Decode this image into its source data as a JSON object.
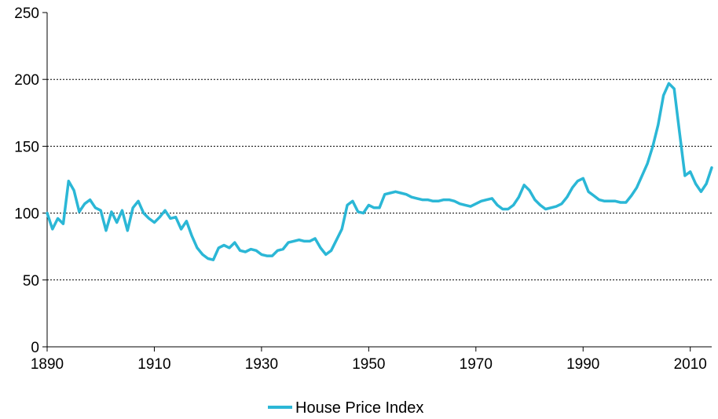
{
  "chart_data": {
    "type": "line",
    "title": "",
    "xlabel": "",
    "ylabel": "",
    "xlim": [
      1890,
      2014
    ],
    "ylim": [
      0,
      250
    ],
    "x_ticks": [
      1890,
      1910,
      1930,
      1950,
      1970,
      1990,
      2010
    ],
    "y_ticks": [
      0,
      50,
      100,
      150,
      200,
      250
    ],
    "grid": {
      "horizontal": true,
      "style": "dotted",
      "vertical": false
    },
    "legend_placement": "bottom-center",
    "series": [
      {
        "name": "House Price Index",
        "color": "#2bb7d6",
        "x": [
          1890,
          1891,
          1892,
          1893,
          1894,
          1895,
          1896,
          1897,
          1898,
          1899,
          1900,
          1901,
          1902,
          1903,
          1904,
          1905,
          1906,
          1907,
          1908,
          1909,
          1910,
          1911,
          1912,
          1913,
          1914,
          1915,
          1916,
          1917,
          1918,
          1919,
          1920,
          1921,
          1922,
          1923,
          1924,
          1925,
          1926,
          1927,
          1928,
          1929,
          1930,
          1931,
          1932,
          1933,
          1934,
          1935,
          1936,
          1937,
          1938,
          1939,
          1940,
          1941,
          1942,
          1943,
          1944,
          1945,
          1946,
          1947,
          1948,
          1949,
          1950,
          1951,
          1952,
          1953,
          1954,
          1955,
          1956,
          1957,
          1958,
          1959,
          1960,
          1961,
          1962,
          1963,
          1964,
          1965,
          1966,
          1967,
          1968,
          1969,
          1970,
          1971,
          1972,
          1973,
          1974,
          1975,
          1976,
          1977,
          1978,
          1979,
          1980,
          1981,
          1982,
          1983,
          1984,
          1985,
          1986,
          1987,
          1988,
          1989,
          1990,
          1991,
          1992,
          1993,
          1994,
          1995,
          1996,
          1997,
          1998,
          1999,
          2000,
          2001,
          2002,
          2003,
          2004,
          2005,
          2006,
          2007,
          2008,
          2009,
          2010,
          2011,
          2012,
          2013,
          2014
        ],
        "values": [
          100,
          88,
          96,
          92,
          124,
          117,
          101,
          107,
          110,
          104,
          102,
          87,
          101,
          93,
          102,
          87,
          104,
          109,
          100,
          96,
          93,
          97,
          102,
          96,
          97,
          88,
          94,
          83,
          74,
          69,
          66,
          65,
          74,
          76,
          74,
          78,
          72,
          71,
          73,
          72,
          69,
          68,
          68,
          72,
          73,
          78,
          79,
          80,
          79,
          79,
          81,
          74,
          69,
          72,
          80,
          88,
          106,
          109,
          101,
          100,
          106,
          104,
          104,
          114,
          115,
          116,
          115,
          114,
          112,
          111,
          110,
          110,
          109,
          109,
          110,
          110,
          109,
          107,
          106,
          105,
          107,
          109,
          110,
          111,
          106,
          103,
          103,
          106,
          112,
          121,
          117,
          110,
          106,
          103,
          104,
          105,
          107,
          112,
          119,
          124,
          126,
          116,
          113,
          110,
          109,
          109,
          109,
          108,
          108,
          113,
          119,
          128,
          137,
          150,
          166,
          188,
          197,
          193,
          160,
          128,
          131,
          122,
          116,
          122,
          134
        ]
      }
    ]
  }
}
